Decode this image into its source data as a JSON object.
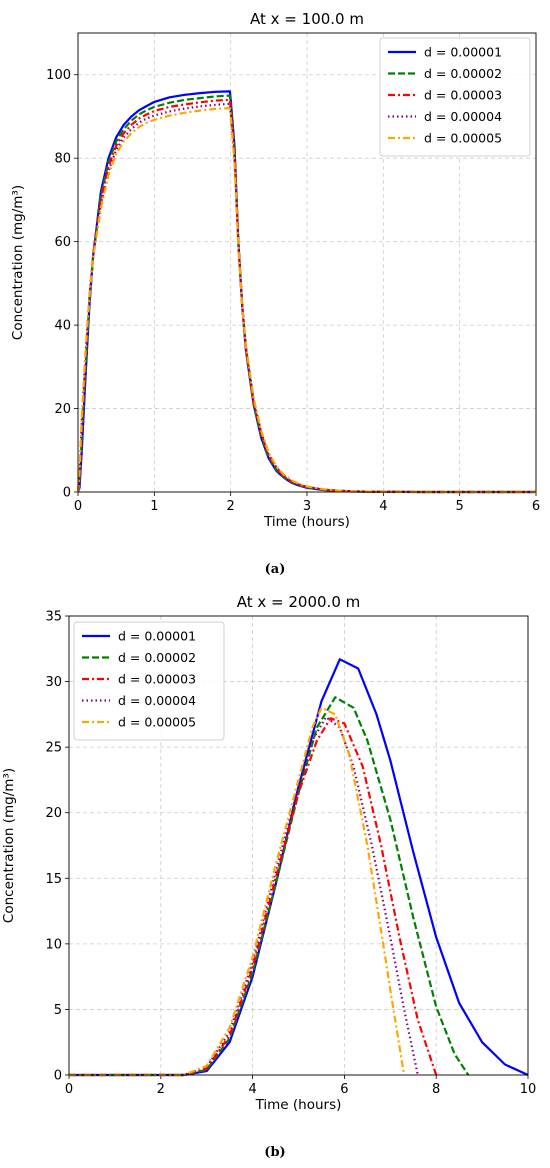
{
  "chart_data": [
    {
      "type": "line",
      "caption": "(a)",
      "title": "At x = 100.0 m",
      "xlabel": "Time (hours)",
      "ylabel": "Concentration (mg/m³)",
      "xlim": [
        0,
        6
      ],
      "ylim": [
        0,
        110
      ],
      "xticks": [
        "0",
        "1",
        "2",
        "3",
        "4",
        "5",
        "6"
      ],
      "yticks": [
        "0",
        "20",
        "40",
        "60",
        "80",
        "100"
      ],
      "grid": true,
      "legend_position": "top-right",
      "series": [
        {
          "name": "d = 0.00001",
          "color": "#0000ff",
          "style": "solid",
          "x": [
            0,
            0.02,
            0.05,
            0.1,
            0.15,
            0.2,
            0.3,
            0.4,
            0.5,
            0.6,
            0.7,
            0.8,
            0.9,
            1.0,
            1.2,
            1.4,
            1.6,
            1.8,
            1.99,
            2.0,
            2.05,
            2.1,
            2.15,
            2.2,
            2.3,
            2.4,
            2.5,
            2.6,
            2.7,
            2.8,
            2.9,
            3.0,
            3.2,
            3.4,
            3.6,
            3.8,
            4.0,
            4.5,
            5.0,
            6.0
          ],
          "y": [
            0,
            1,
            10,
            28,
            45,
            57,
            72,
            80,
            85,
            88,
            90,
            91.5,
            92.5,
            93.5,
            94.6,
            95.2,
            95.6,
            95.9,
            96,
            94,
            83,
            60,
            45,
            34,
            21,
            13,
            8,
            5,
            3.4,
            2.2,
            1.5,
            1,
            0.5,
            0.25,
            0.12,
            0.06,
            0.03,
            0.01,
            0,
            0
          ]
        },
        {
          "name": "d = 0.00002",
          "color": "#008000",
          "style": "dashed",
          "x": [
            0,
            0.02,
            0.05,
            0.1,
            0.15,
            0.2,
            0.3,
            0.4,
            0.5,
            0.6,
            0.7,
            0.8,
            0.9,
            1.0,
            1.2,
            1.4,
            1.6,
            1.8,
            1.99,
            2.0,
            2.05,
            2.1,
            2.15,
            2.2,
            2.3,
            2.4,
            2.5,
            2.6,
            2.7,
            2.8,
            2.9,
            3.0,
            3.2,
            3.4,
            3.6,
            3.8,
            4.0,
            4.5,
            5.0,
            6.0
          ],
          "y": [
            0,
            2,
            13,
            30,
            46,
            57,
            71,
            79,
            84,
            87,
            89,
            90.5,
            91.5,
            92.3,
            93.3,
            94,
            94.4,
            94.8,
            95,
            93,
            82,
            60,
            45,
            34,
            21,
            13.5,
            8.3,
            5.3,
            3.5,
            2.3,
            1.6,
            1.1,
            0.55,
            0.28,
            0.14,
            0.07,
            0.04,
            0.01,
            0,
            0
          ]
        },
        {
          "name": "d = 0.00003",
          "color": "#ff0000",
          "style": "dashdot",
          "x": [
            0,
            0.02,
            0.05,
            0.1,
            0.15,
            0.2,
            0.3,
            0.4,
            0.5,
            0.6,
            0.7,
            0.8,
            0.9,
            1.0,
            1.2,
            1.4,
            1.6,
            1.8,
            1.99,
            2.0,
            2.05,
            2.1,
            2.15,
            2.2,
            2.3,
            2.4,
            2.5,
            2.6,
            2.7,
            2.8,
            2.9,
            3.0,
            3.2,
            3.4,
            3.6,
            3.8,
            4.0,
            4.5,
            5.0,
            6.0
          ],
          "y": [
            0,
            3,
            15,
            32,
            47,
            57,
            70,
            78,
            83,
            86,
            88,
            89.5,
            90.5,
            91.3,
            92.3,
            92.9,
            93.4,
            93.8,
            94,
            92,
            81,
            60,
            45,
            34.5,
            21.5,
            14,
            8.7,
            5.6,
            3.7,
            2.5,
            1.7,
            1.2,
            0.6,
            0.3,
            0.15,
            0.08,
            0.04,
            0.01,
            0,
            0
          ]
        },
        {
          "name": "d = 0.00004",
          "color": "#800080",
          "style": "dotted",
          "x": [
            0,
            0.02,
            0.05,
            0.1,
            0.15,
            0.2,
            0.3,
            0.4,
            0.5,
            0.6,
            0.7,
            0.8,
            0.9,
            1.0,
            1.2,
            1.4,
            1.6,
            1.8,
            1.99,
            2.0,
            2.05,
            2.1,
            2.15,
            2.2,
            2.3,
            2.4,
            2.5,
            2.6,
            2.7,
            2.8,
            2.9,
            3.0,
            3.2,
            3.4,
            3.6,
            3.8,
            4.0,
            4.5,
            5.0,
            6.0
          ],
          "y": [
            0,
            4,
            17,
            33,
            47,
            57,
            69,
            77,
            82,
            85,
            87,
            88.5,
            89.5,
            90.2,
            91.2,
            91.9,
            92.4,
            92.8,
            93,
            91,
            80,
            60,
            45,
            35,
            22,
            14.3,
            9,
            5.9,
            3.9,
            2.6,
            1.8,
            1.25,
            0.65,
            0.33,
            0.17,
            0.09,
            0.05,
            0.01,
            0,
            0
          ]
        },
        {
          "name": "d = 0.00005",
          "color": "#ffa500",
          "style": "dashdot",
          "x": [
            0,
            0.02,
            0.05,
            0.1,
            0.15,
            0.2,
            0.3,
            0.4,
            0.5,
            0.6,
            0.7,
            0.8,
            0.9,
            1.0,
            1.2,
            1.4,
            1.6,
            1.8,
            1.99,
            2.0,
            2.05,
            2.1,
            2.15,
            2.2,
            2.3,
            2.4,
            2.5,
            2.6,
            2.7,
            2.8,
            2.9,
            3.0,
            3.2,
            3.4,
            3.6,
            3.8,
            4.0,
            4.5,
            5.0,
            6.0
          ],
          "y": [
            0,
            5,
            18,
            34,
            47,
            56.5,
            68,
            76,
            81,
            84,
            86,
            87.5,
            88.5,
            89.2,
            90.2,
            90.9,
            91.4,
            91.8,
            92,
            90,
            79,
            59,
            45,
            35,
            22.5,
            14.7,
            9.3,
            6.1,
            4.1,
            2.8,
            1.9,
            1.35,
            0.7,
            0.36,
            0.19,
            0.1,
            0.05,
            0.01,
            0,
            0
          ]
        }
      ]
    },
    {
      "type": "line",
      "caption": "(b)",
      "title": "At x = 2000.0 m",
      "xlabel": "Time (hours)",
      "ylabel": "Concentration (mg/m³)",
      "xlim": [
        0,
        10
      ],
      "ylim": [
        0,
        35
      ],
      "xticks": [
        "0",
        "2",
        "4",
        "6",
        "8",
        "10"
      ],
      "yticks": [
        "0",
        "5",
        "10",
        "15",
        "20",
        "25",
        "30",
        "35"
      ],
      "grid": true,
      "legend_position": "top-left",
      "series": [
        {
          "name": "d = 0.00001",
          "color": "#0000ff",
          "style": "solid",
          "x": [
            0,
            2.5,
            3.0,
            3.5,
            4.0,
            4.5,
            5.0,
            5.5,
            5.9,
            6.3,
            6.7,
            7.0,
            7.5,
            8.0,
            8.5,
            9.0,
            9.5,
            10.0
          ],
          "y": [
            0,
            0,
            0.3,
            2.5,
            7.5,
            14.5,
            22,
            28.5,
            31.7,
            31,
            27.5,
            24,
            17,
            10.5,
            5.5,
            2.5,
            0.8,
            0
          ]
        },
        {
          "name": "d = 0.00002",
          "color": "#008000",
          "style": "dashed",
          "x": [
            0,
            2.5,
            3.0,
            3.5,
            4.0,
            4.5,
            5.0,
            5.4,
            5.8,
            6.2,
            6.5,
            7.0,
            7.5,
            8.0,
            8.4,
            8.7
          ],
          "y": [
            0,
            0,
            0.4,
            2.8,
            7.8,
            14.5,
            21.5,
            26.5,
            28.8,
            28,
            25.5,
            19.5,
            12,
            5.2,
            1.6,
            0
          ]
        },
        {
          "name": "d = 0.00003",
          "color": "#ff0000",
          "style": "dashdot",
          "x": [
            0,
            2.5,
            3.0,
            3.5,
            4.0,
            4.5,
            5.0,
            5.4,
            5.7,
            6.0,
            6.4,
            6.8,
            7.2,
            7.6,
            8.0
          ],
          "y": [
            0,
            0,
            0.5,
            3.0,
            8.2,
            15,
            21.5,
            25.5,
            27.2,
            26.8,
            23.5,
            17.5,
            10.5,
            4.2,
            0
          ]
        },
        {
          "name": "d = 0.00004",
          "color": "#800080",
          "style": "dotted",
          "x": [
            0,
            2.5,
            3.0,
            3.5,
            4.0,
            4.5,
            5.0,
            5.3,
            5.6,
            5.9,
            6.2,
            6.6,
            7.0,
            7.3,
            7.6
          ],
          "y": [
            0,
            0,
            0.6,
            3.3,
            8.6,
            15.5,
            22,
            25.5,
            27.3,
            26.5,
            23.5,
            17.5,
            10.5,
            5,
            0
          ]
        },
        {
          "name": "d = 0.00005",
          "color": "#ffa500",
          "style": "dashdot",
          "x": [
            0,
            2.5,
            3.0,
            3.5,
            4.0,
            4.5,
            5.0,
            5.3,
            5.5,
            5.8,
            6.1,
            6.5,
            6.8,
            7.0,
            7.3
          ],
          "y": [
            0,
            0,
            0.7,
            3.6,
            9,
            16,
            22.5,
            26.5,
            28,
            27.5,
            24.5,
            17.5,
            11,
            6.5,
            0
          ]
        }
      ]
    }
  ]
}
